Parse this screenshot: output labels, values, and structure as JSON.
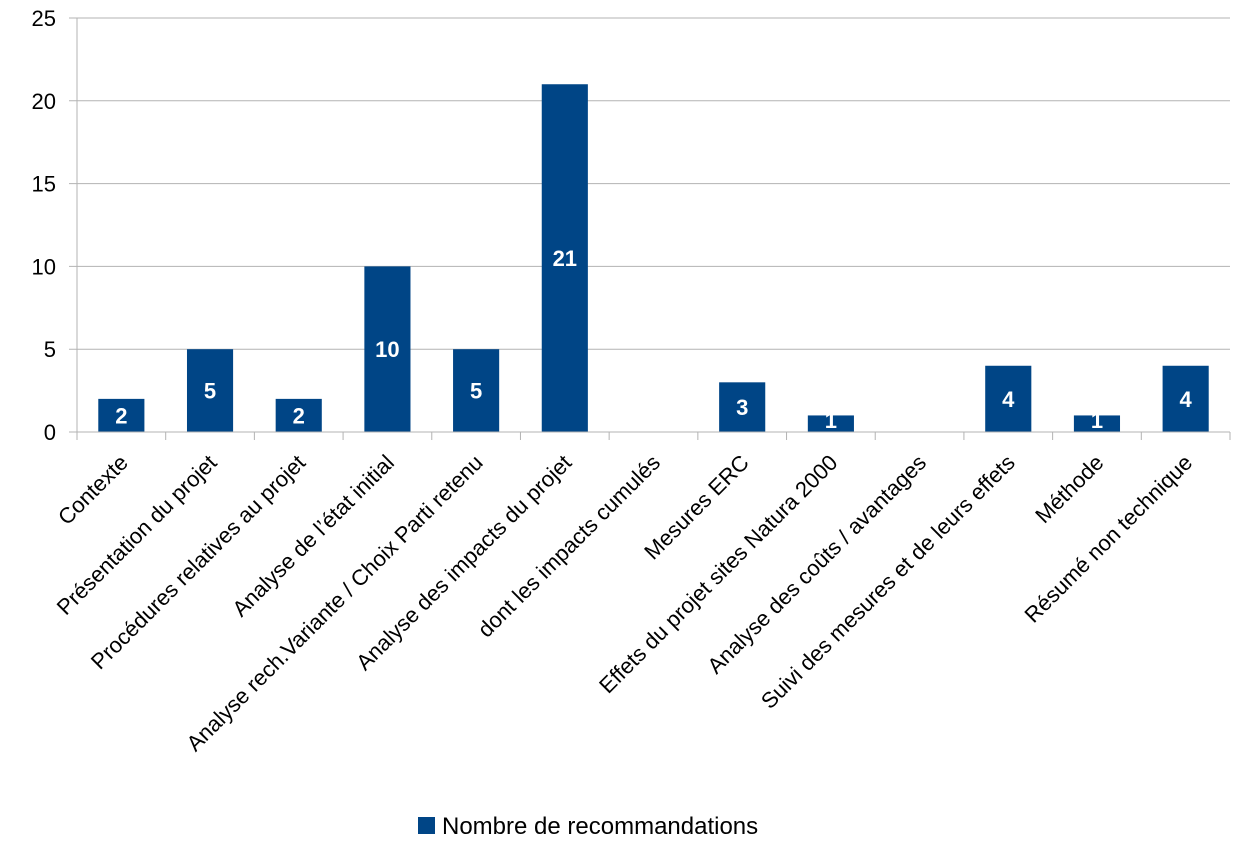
{
  "chart_data": {
    "type": "bar",
    "categories": [
      "Contexte",
      "Présentation du projet",
      "Procédures relatives au projet",
      "Analyse de l’état initial",
      "Analyse rech.Variante / Choix Parti retenu",
      "Analyse des impacts du projet",
      "dont les impacts cumulés",
      "Mesures ERC",
      "Effets du projet sites Natura 2000",
      "Analyse des coûts / avantages",
      "Suivi des mesures et de leurs effets",
      "Méthode",
      "Résumé non technique"
    ],
    "series": [
      {
        "name": "Nombre de recommandations",
        "values": [
          2,
          5,
          2,
          10,
          5,
          21,
          0,
          3,
          1,
          0,
          4,
          1,
          4
        ]
      }
    ],
    "ylim": [
      0,
      25
    ],
    "yticks": [
      0,
      5,
      10,
      15,
      20,
      25
    ],
    "grid": true,
    "legend_position": "bottom",
    "data_labels": true,
    "colors": {
      "bar": "#004586",
      "grid": "#b3b3b3",
      "axis": "#b3b3b3",
      "label": "#ffffff"
    }
  }
}
